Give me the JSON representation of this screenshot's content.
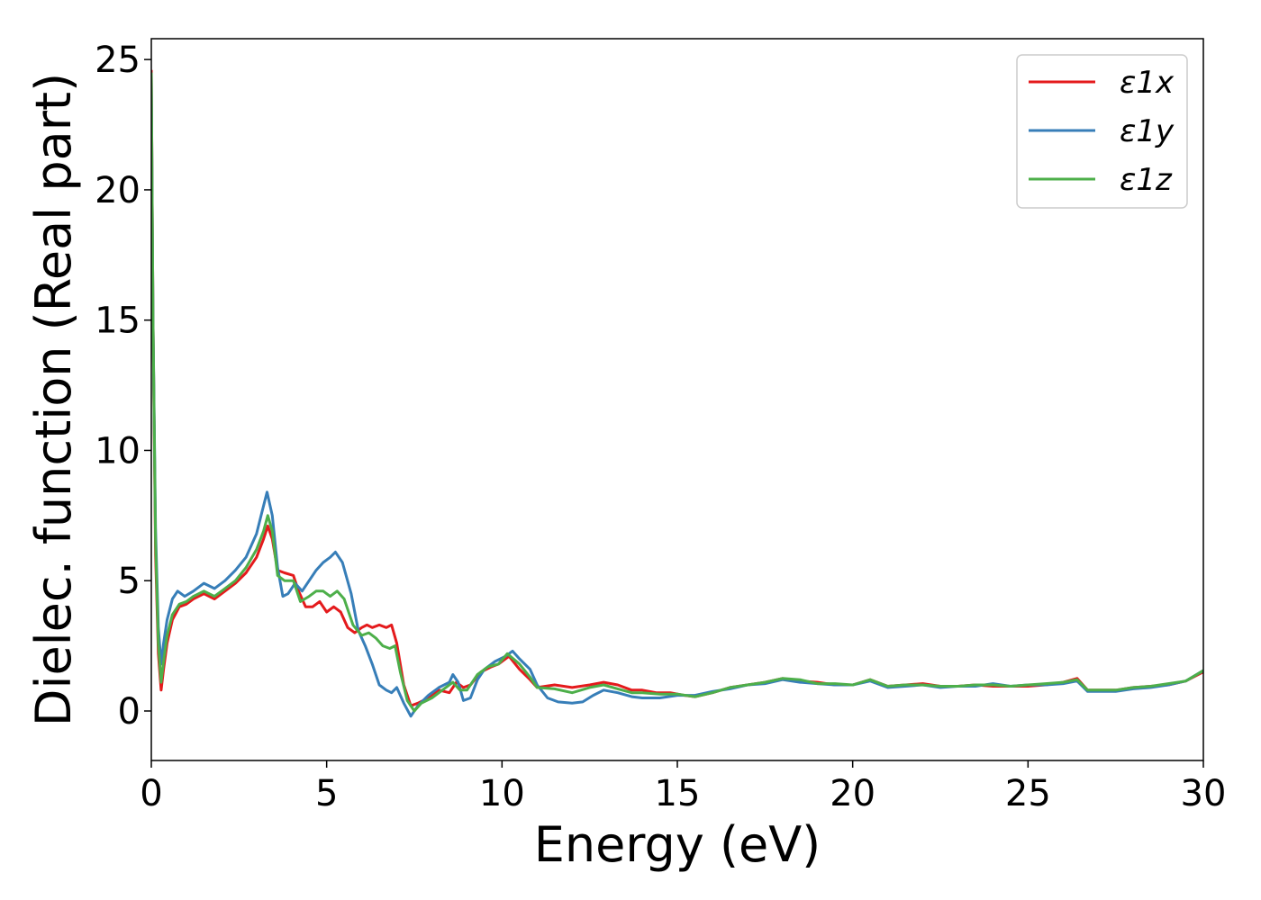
{
  "chart_data": {
    "type": "line",
    "xlabel": "Energy (eV)",
    "ylabel": "Dielec. function (Real part)",
    "xlim": [
      0,
      30
    ],
    "ylim": [
      -1.9,
      25.8
    ],
    "xticks": [
      0,
      5,
      10,
      15,
      20,
      25,
      30
    ],
    "yticks": [
      0,
      5,
      10,
      15,
      20,
      25
    ],
    "grid": false,
    "legend_position": "top-right",
    "series": [
      {
        "name": "ε1x",
        "color": "#e41a1c",
        "points": [
          [
            0.0,
            24.6
          ],
          [
            0.05,
            15.0
          ],
          [
            0.12,
            6.0
          ],
          [
            0.2,
            2.2
          ],
          [
            0.28,
            0.8
          ],
          [
            0.35,
            1.6
          ],
          [
            0.45,
            2.6
          ],
          [
            0.6,
            3.5
          ],
          [
            0.8,
            4.0
          ],
          [
            1.0,
            4.1
          ],
          [
            1.2,
            4.3
          ],
          [
            1.5,
            4.5
          ],
          [
            1.8,
            4.3
          ],
          [
            2.1,
            4.6
          ],
          [
            2.4,
            4.9
          ],
          [
            2.7,
            5.3
          ],
          [
            3.0,
            5.9
          ],
          [
            3.2,
            6.6
          ],
          [
            3.32,
            7.1
          ],
          [
            3.45,
            6.6
          ],
          [
            3.6,
            5.4
          ],
          [
            3.8,
            5.3
          ],
          [
            4.05,
            5.2
          ],
          [
            4.2,
            4.6
          ],
          [
            4.4,
            4.0
          ],
          [
            4.6,
            4.0
          ],
          [
            4.8,
            4.2
          ],
          [
            5.0,
            3.8
          ],
          [
            5.2,
            4.0
          ],
          [
            5.4,
            3.8
          ],
          [
            5.6,
            3.2
          ],
          [
            5.8,
            3.0
          ],
          [
            6.0,
            3.2
          ],
          [
            6.15,
            3.3
          ],
          [
            6.3,
            3.2
          ],
          [
            6.5,
            3.3
          ],
          [
            6.7,
            3.2
          ],
          [
            6.85,
            3.3
          ],
          [
            7.0,
            2.6
          ],
          [
            7.2,
            1.0
          ],
          [
            7.4,
            0.2
          ],
          [
            7.6,
            0.3
          ],
          [
            7.9,
            0.5
          ],
          [
            8.2,
            0.8
          ],
          [
            8.5,
            0.7
          ],
          [
            8.7,
            1.1
          ],
          [
            8.9,
            0.9
          ],
          [
            9.1,
            1.0
          ],
          [
            9.4,
            1.5
          ],
          [
            9.7,
            1.7
          ],
          [
            9.9,
            1.8
          ],
          [
            10.2,
            2.1
          ],
          [
            10.5,
            1.6
          ],
          [
            10.8,
            1.2
          ],
          [
            11.0,
            0.9
          ],
          [
            11.5,
            1.0
          ],
          [
            12.0,
            0.9
          ],
          [
            12.5,
            1.0
          ],
          [
            12.9,
            1.1
          ],
          [
            13.3,
            1.0
          ],
          [
            13.7,
            0.8
          ],
          [
            14.0,
            0.8
          ],
          [
            14.4,
            0.7
          ],
          [
            14.8,
            0.7
          ],
          [
            15.2,
            0.6
          ],
          [
            15.5,
            0.55
          ],
          [
            16.0,
            0.7
          ],
          [
            16.5,
            0.9
          ],
          [
            17.0,
            1.0
          ],
          [
            17.5,
            1.1
          ],
          [
            18.0,
            1.25
          ],
          [
            18.5,
            1.15
          ],
          [
            19.0,
            1.1
          ],
          [
            19.5,
            1.0
          ],
          [
            20.0,
            1.0
          ],
          [
            20.5,
            1.2
          ],
          [
            21.0,
            0.95
          ],
          [
            21.5,
            1.0
          ],
          [
            22.0,
            1.05
          ],
          [
            22.5,
            0.95
          ],
          [
            23.0,
            0.95
          ],
          [
            23.5,
            1.0
          ],
          [
            24.0,
            0.95
          ],
          [
            24.5,
            0.95
          ],
          [
            25.0,
            0.95
          ],
          [
            25.5,
            1.0
          ],
          [
            26.0,
            1.1
          ],
          [
            26.4,
            1.25
          ],
          [
            26.7,
            0.8
          ],
          [
            27.0,
            0.8
          ],
          [
            27.5,
            0.8
          ],
          [
            28.0,
            0.9
          ],
          [
            28.5,
            0.95
          ],
          [
            29.0,
            1.0
          ],
          [
            29.5,
            1.15
          ],
          [
            30.0,
            1.5
          ]
        ]
      },
      {
        "name": "ε1y",
        "color": "#377eb8",
        "points": [
          [
            0.0,
            24.4
          ],
          [
            0.05,
            15.0
          ],
          [
            0.12,
            7.0
          ],
          [
            0.2,
            3.2
          ],
          [
            0.28,
            1.8
          ],
          [
            0.35,
            2.6
          ],
          [
            0.45,
            3.5
          ],
          [
            0.6,
            4.3
          ],
          [
            0.75,
            4.6
          ],
          [
            0.95,
            4.4
          ],
          [
            1.2,
            4.6
          ],
          [
            1.5,
            4.9
          ],
          [
            1.8,
            4.7
          ],
          [
            2.1,
            5.0
          ],
          [
            2.4,
            5.4
          ],
          [
            2.7,
            5.9
          ],
          [
            3.0,
            6.8
          ],
          [
            3.15,
            7.6
          ],
          [
            3.3,
            8.4
          ],
          [
            3.45,
            7.5
          ],
          [
            3.6,
            5.5
          ],
          [
            3.75,
            4.4
          ],
          [
            3.9,
            4.5
          ],
          [
            4.1,
            4.9
          ],
          [
            4.3,
            4.6
          ],
          [
            4.5,
            5.0
          ],
          [
            4.7,
            5.4
          ],
          [
            4.9,
            5.7
          ],
          [
            5.1,
            5.9
          ],
          [
            5.25,
            6.1
          ],
          [
            5.45,
            5.7
          ],
          [
            5.7,
            4.5
          ],
          [
            5.9,
            3.1
          ],
          [
            6.1,
            2.5
          ],
          [
            6.3,
            1.8
          ],
          [
            6.5,
            1.0
          ],
          [
            6.7,
            0.8
          ],
          [
            6.85,
            0.7
          ],
          [
            7.0,
            0.9
          ],
          [
            7.2,
            0.3
          ],
          [
            7.4,
            -0.2
          ],
          [
            7.6,
            0.2
          ],
          [
            7.9,
            0.6
          ],
          [
            8.2,
            0.9
          ],
          [
            8.5,
            1.1
          ],
          [
            8.6,
            1.4
          ],
          [
            8.75,
            1.1
          ],
          [
            8.9,
            0.4
          ],
          [
            9.1,
            0.5
          ],
          [
            9.3,
            1.2
          ],
          [
            9.5,
            1.6
          ],
          [
            9.8,
            1.9
          ],
          [
            10.1,
            2.1
          ],
          [
            10.3,
            2.3
          ],
          [
            10.5,
            2.0
          ],
          [
            10.8,
            1.6
          ],
          [
            11.0,
            1.0
          ],
          [
            11.3,
            0.5
          ],
          [
            11.6,
            0.35
          ],
          [
            12.0,
            0.3
          ],
          [
            12.3,
            0.35
          ],
          [
            12.6,
            0.6
          ],
          [
            12.9,
            0.8
          ],
          [
            13.3,
            0.7
          ],
          [
            13.7,
            0.55
          ],
          [
            14.0,
            0.5
          ],
          [
            14.5,
            0.5
          ],
          [
            15.0,
            0.6
          ],
          [
            15.5,
            0.6
          ],
          [
            16.0,
            0.75
          ],
          [
            16.5,
            0.85
          ],
          [
            17.0,
            1.0
          ],
          [
            17.5,
            1.05
          ],
          [
            18.0,
            1.2
          ],
          [
            18.5,
            1.1
          ],
          [
            19.0,
            1.05
          ],
          [
            19.5,
            1.0
          ],
          [
            20.0,
            1.0
          ],
          [
            20.5,
            1.15
          ],
          [
            21.0,
            0.9
          ],
          [
            21.5,
            0.95
          ],
          [
            22.0,
            1.0
          ],
          [
            22.5,
            0.9
          ],
          [
            23.0,
            0.95
          ],
          [
            23.5,
            0.95
          ],
          [
            24.0,
            1.05
          ],
          [
            24.5,
            0.95
          ],
          [
            25.0,
            1.0
          ],
          [
            25.5,
            1.0
          ],
          [
            26.0,
            1.05
          ],
          [
            26.4,
            1.15
          ],
          [
            26.7,
            0.75
          ],
          [
            27.0,
            0.75
          ],
          [
            27.5,
            0.75
          ],
          [
            28.0,
            0.85
          ],
          [
            28.5,
            0.9
          ],
          [
            29.0,
            1.0
          ],
          [
            29.5,
            1.15
          ],
          [
            30.0,
            1.55
          ]
        ]
      },
      {
        "name": "ε1z",
        "color": "#4daf4a",
        "points": [
          [
            0.0,
            24.5
          ],
          [
            0.05,
            15.0
          ],
          [
            0.12,
            6.5
          ],
          [
            0.2,
            2.6
          ],
          [
            0.28,
            1.1
          ],
          [
            0.35,
            1.9
          ],
          [
            0.45,
            2.9
          ],
          [
            0.6,
            3.7
          ],
          [
            0.8,
            4.1
          ],
          [
            1.0,
            4.2
          ],
          [
            1.2,
            4.4
          ],
          [
            1.5,
            4.6
          ],
          [
            1.8,
            4.4
          ],
          [
            2.1,
            4.7
          ],
          [
            2.4,
            5.0
          ],
          [
            2.7,
            5.5
          ],
          [
            3.0,
            6.2
          ],
          [
            3.2,
            6.9
          ],
          [
            3.32,
            7.5
          ],
          [
            3.45,
            6.9
          ],
          [
            3.6,
            5.2
          ],
          [
            3.8,
            5.0
          ],
          [
            4.05,
            5.0
          ],
          [
            4.25,
            4.2
          ],
          [
            4.5,
            4.4
          ],
          [
            4.7,
            4.6
          ],
          [
            4.9,
            4.6
          ],
          [
            5.1,
            4.4
          ],
          [
            5.3,
            4.6
          ],
          [
            5.5,
            4.3
          ],
          [
            5.75,
            3.3
          ],
          [
            6.0,
            2.9
          ],
          [
            6.2,
            3.0
          ],
          [
            6.4,
            2.8
          ],
          [
            6.6,
            2.5
          ],
          [
            6.8,
            2.4
          ],
          [
            6.95,
            2.5
          ],
          [
            7.1,
            1.5
          ],
          [
            7.3,
            0.4
          ],
          [
            7.5,
            0.0
          ],
          [
            7.7,
            0.3
          ],
          [
            8.0,
            0.5
          ],
          [
            8.3,
            0.8
          ],
          [
            8.6,
            1.1
          ],
          [
            8.8,
            0.8
          ],
          [
            9.0,
            0.8
          ],
          [
            9.3,
            1.4
          ],
          [
            9.6,
            1.7
          ],
          [
            9.9,
            1.8
          ],
          [
            10.15,
            2.2
          ],
          [
            10.5,
            1.8
          ],
          [
            10.8,
            1.3
          ],
          [
            11.0,
            0.9
          ],
          [
            11.5,
            0.85
          ],
          [
            12.0,
            0.7
          ],
          [
            12.5,
            0.9
          ],
          [
            12.9,
            1.0
          ],
          [
            13.3,
            0.85
          ],
          [
            13.7,
            0.7
          ],
          [
            14.0,
            0.7
          ],
          [
            14.5,
            0.65
          ],
          [
            15.0,
            0.65
          ],
          [
            15.5,
            0.55
          ],
          [
            16.0,
            0.7
          ],
          [
            16.5,
            0.9
          ],
          [
            17.0,
            1.0
          ],
          [
            17.5,
            1.1
          ],
          [
            18.0,
            1.25
          ],
          [
            18.5,
            1.2
          ],
          [
            19.0,
            1.05
          ],
          [
            19.5,
            1.05
          ],
          [
            20.0,
            1.0
          ],
          [
            20.5,
            1.2
          ],
          [
            21.0,
            0.95
          ],
          [
            21.5,
            1.0
          ],
          [
            22.0,
            1.0
          ],
          [
            22.5,
            0.95
          ],
          [
            23.0,
            0.95
          ],
          [
            23.5,
            1.0
          ],
          [
            24.0,
            1.0
          ],
          [
            24.5,
            0.95
          ],
          [
            25.0,
            1.0
          ],
          [
            25.5,
            1.05
          ],
          [
            26.0,
            1.1
          ],
          [
            26.4,
            1.2
          ],
          [
            26.7,
            0.8
          ],
          [
            27.0,
            0.8
          ],
          [
            27.5,
            0.8
          ],
          [
            28.0,
            0.9
          ],
          [
            28.5,
            0.95
          ],
          [
            29.0,
            1.05
          ],
          [
            29.5,
            1.15
          ],
          [
            30.0,
            1.55
          ]
        ]
      }
    ]
  }
}
